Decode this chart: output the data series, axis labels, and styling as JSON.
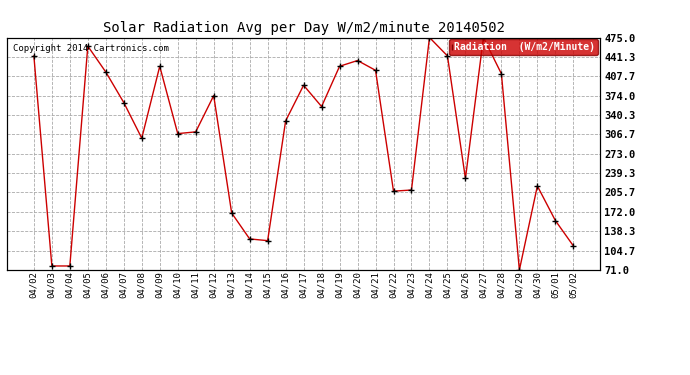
{
  "title": "Solar Radiation Avg per Day W/m2/minute 20140502",
  "copyright": "Copyright 2014 Cartronics.com",
  "legend_label": "Radiation  (W/m2/Minute)",
  "background_color": "#ffffff",
  "plot_bg_color": "#ffffff",
  "line_color": "#cc0000",
  "marker_color": "#000000",
  "grid_color": "#aaaaaa",
  "ylim": [
    71.0,
    475.0
  ],
  "yticks": [
    71.0,
    104.7,
    138.3,
    172.0,
    205.7,
    239.3,
    273.0,
    306.7,
    340.3,
    374.0,
    407.7,
    441.3,
    475.0
  ],
  "dates": [
    "04/02",
    "04/03",
    "04/04",
    "04/05",
    "04/06",
    "04/07",
    "04/08",
    "04/09",
    "04/10",
    "04/11",
    "04/12",
    "04/13",
    "04/14",
    "04/15",
    "04/16",
    "04/17",
    "04/18",
    "04/19",
    "04/20",
    "04/21",
    "04/22",
    "04/23",
    "04/24",
    "04/25",
    "04/26",
    "04/27",
    "04/28",
    "04/29",
    "04/30",
    "05/01",
    "05/02"
  ],
  "values": [
    443,
    78,
    78,
    460,
    415,
    362,
    300,
    425,
    308,
    311,
    374,
    170,
    125,
    122,
    330,
    392,
    355,
    425,
    435,
    418,
    208,
    210,
    475,
    443,
    230,
    475,
    412,
    71,
    217,
    157,
    113
  ]
}
